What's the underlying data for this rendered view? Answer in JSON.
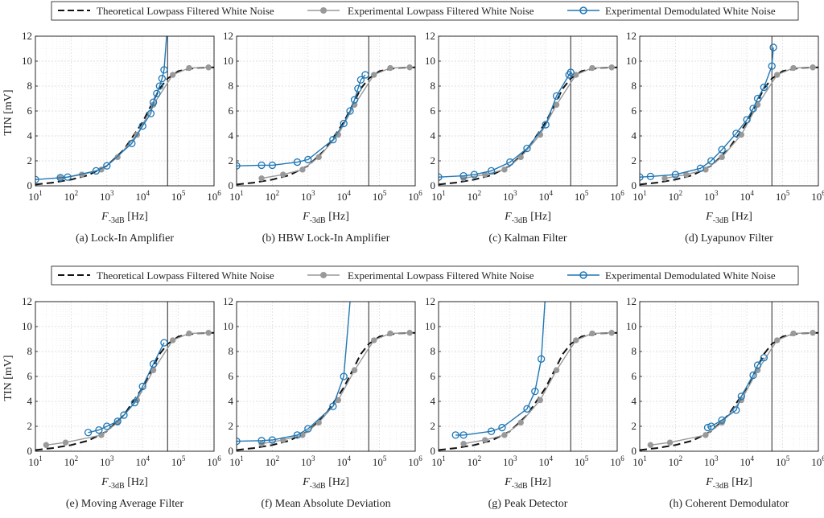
{
  "legend": {
    "theory": "Theoretical Lowpass Filtered White Noise",
    "lp": "Experimental Lowpass Filtered White Noise",
    "demod": "Experimental Demodulated White Noise"
  },
  "axes": {
    "ylabel": "TIN [mV]",
    "xlabel_main": "F",
    "xlabel_sub": "-3dB",
    "xlabel_unit": "[Hz]",
    "x_range_log10": [
      1,
      6
    ],
    "ylim": [
      0,
      12
    ],
    "y_ticks": [
      "0",
      "2",
      "4",
      "6",
      "8",
      "10",
      "12"
    ],
    "x_tick_base": "10",
    "x_tick_exps": [
      "1",
      "2",
      "3",
      "4",
      "5",
      "6"
    ],
    "cutoff_hz": 50000
  },
  "colors": {
    "theory": "#111111",
    "lp": "#999999",
    "demod": "#1f77b4",
    "grid": "#d9d9d9"
  },
  "chart_data": [
    {
      "type": "line",
      "title": "(a) Lock-In Amplifier",
      "series": [
        {
          "name": "Theoretical Lowpass Filtered White Noise",
          "x": [
            10,
            30,
            100,
            300,
            1000,
            3000,
            10000,
            30000,
            50000,
            100000,
            300000,
            1000000
          ],
          "y": [
            0.1,
            0.25,
            0.5,
            0.85,
            1.6,
            2.9,
            5.1,
            7.8,
            8.6,
            9.2,
            9.45,
            9.5
          ]
        },
        {
          "name": "Experimental Lowpass Filtered White Noise",
          "x": [
            50,
            200,
            700,
            2000,
            7000,
            20000,
            70000,
            200000,
            700000
          ],
          "y": [
            0.6,
            0.9,
            1.3,
            2.3,
            4.1,
            6.5,
            8.9,
            9.45,
            9.5
          ]
        },
        {
          "name": "Experimental Demodulated White Noise",
          "x": [
            10,
            50,
            80,
            500,
            1000,
            5000,
            10000,
            17000,
            20000,
            25000,
            30000,
            35000,
            40000,
            47000
          ],
          "y": [
            0.5,
            0.65,
            0.7,
            1.2,
            1.6,
            3.4,
            4.8,
            5.8,
            6.7,
            7.4,
            8.0,
            8.6,
            9.3,
            12.0
          ]
        }
      ]
    },
    {
      "type": "line",
      "title": "(b) HBW Lock-In Amplifier",
      "series": [
        {
          "name": "Theoretical Lowpass Filtered White Noise",
          "x": [
            10,
            30,
            100,
            300,
            1000,
            3000,
            10000,
            30000,
            50000,
            100000,
            300000,
            1000000
          ],
          "y": [
            0.1,
            0.25,
            0.5,
            0.85,
            1.6,
            2.9,
            5.1,
            7.8,
            8.6,
            9.2,
            9.45,
            9.5
          ]
        },
        {
          "name": "Experimental Lowpass Filtered White Noise",
          "x": [
            50,
            200,
            700,
            2000,
            7000,
            20000,
            70000,
            200000,
            700000
          ],
          "y": [
            0.6,
            0.9,
            1.3,
            2.3,
            4.1,
            6.5,
            8.9,
            9.45,
            9.5
          ]
        },
        {
          "name": "Experimental Demodulated White Noise",
          "x": [
            10,
            50,
            100,
            500,
            1000,
            5000,
            10000,
            15000,
            20000,
            25000,
            30000,
            40000
          ],
          "y": [
            1.6,
            1.65,
            1.65,
            1.9,
            2.1,
            3.7,
            5.0,
            6.0,
            6.9,
            7.8,
            8.5,
            8.9
          ]
        }
      ]
    },
    {
      "type": "line",
      "title": "(c) Kalman Filter",
      "series": [
        {
          "name": "Theoretical Lowpass Filtered White Noise",
          "x": [
            10,
            30,
            100,
            300,
            1000,
            3000,
            10000,
            30000,
            50000,
            100000,
            300000,
            1000000
          ],
          "y": [
            0.1,
            0.25,
            0.5,
            0.85,
            1.6,
            2.9,
            5.1,
            7.8,
            8.6,
            9.2,
            9.45,
            9.5
          ]
        },
        {
          "name": "Experimental Lowpass Filtered White Noise",
          "x": [
            50,
            200,
            700,
            2000,
            7000,
            20000,
            70000,
            200000,
            700000
          ],
          "y": [
            0.6,
            0.9,
            1.3,
            2.3,
            4.1,
            6.5,
            8.9,
            9.45,
            9.5
          ]
        },
        {
          "name": "Experimental Demodulated White Noise",
          "x": [
            10,
            50,
            100,
            300,
            1000,
            3000,
            10000,
            20000,
            45000,
            50000
          ],
          "y": [
            0.7,
            0.8,
            0.9,
            1.2,
            1.9,
            3.0,
            4.9,
            7.2,
            8.9,
            9.1
          ]
        }
      ]
    },
    {
      "type": "line",
      "title": "(d) Lyapunov Filter",
      "series": [
        {
          "name": "Theoretical Lowpass Filtered White Noise",
          "x": [
            10,
            30,
            100,
            300,
            1000,
            3000,
            10000,
            30000,
            50000,
            100000,
            300000,
            1000000
          ],
          "y": [
            0.1,
            0.25,
            0.5,
            0.85,
            1.6,
            2.9,
            5.1,
            7.8,
            8.6,
            9.2,
            9.45,
            9.5
          ]
        },
        {
          "name": "Experimental Lowpass Filtered White Noise",
          "x": [
            50,
            200,
            700,
            2000,
            7000,
            20000,
            70000,
            200000,
            700000
          ],
          "y": [
            0.6,
            0.9,
            1.3,
            2.3,
            4.1,
            6.5,
            8.9,
            9.45,
            9.5
          ]
        },
        {
          "name": "Experimental Demodulated White Noise",
          "x": [
            10,
            20,
            100,
            500,
            1000,
            2000,
            5000,
            10000,
            15000,
            20000,
            30000,
            50000,
            55000
          ],
          "y": [
            0.7,
            0.75,
            0.9,
            1.4,
            2.0,
            2.9,
            4.2,
            5.3,
            6.2,
            7.0,
            7.9,
            9.6,
            11.1
          ]
        }
      ]
    },
    {
      "type": "line",
      "title": "(e) Moving Average Filter",
      "series": [
        {
          "name": "Theoretical Lowpass Filtered White Noise",
          "x": [
            10,
            30,
            100,
            300,
            1000,
            3000,
            10000,
            30000,
            50000,
            100000,
            300000,
            1000000
          ],
          "y": [
            0.1,
            0.25,
            0.5,
            0.85,
            1.6,
            2.9,
            5.1,
            7.8,
            8.6,
            9.2,
            9.45,
            9.5
          ]
        },
        {
          "name": "Experimental Lowpass Filtered White Noise",
          "x": [
            20,
            70,
            700,
            2000,
            7000,
            20000,
            70000,
            200000,
            700000
          ],
          "y": [
            0.5,
            0.7,
            1.3,
            2.3,
            4.1,
            6.5,
            8.9,
            9.45,
            9.5
          ]
        },
        {
          "name": "Experimental Demodulated White Noise",
          "x": [
            300,
            600,
            1000,
            2000,
            3000,
            6000,
            10000,
            20000,
            40000
          ],
          "y": [
            1.5,
            1.7,
            2.0,
            2.4,
            2.9,
            3.9,
            5.2,
            7.0,
            8.7
          ]
        }
      ]
    },
    {
      "type": "line",
      "title": "(f) Mean Absolute Deviation",
      "series": [
        {
          "name": "Theoretical Lowpass Filtered White Noise",
          "x": [
            10,
            30,
            100,
            300,
            1000,
            3000,
            10000,
            30000,
            50000,
            100000,
            300000,
            1000000
          ],
          "y": [
            0.1,
            0.25,
            0.5,
            0.85,
            1.6,
            2.9,
            5.1,
            7.8,
            8.6,
            9.2,
            9.45,
            9.5
          ]
        },
        {
          "name": "Experimental Lowpass Filtered White Noise",
          "x": [
            50,
            200,
            700,
            2000,
            7000,
            20000,
            70000,
            200000,
            700000
          ],
          "y": [
            0.6,
            0.9,
            1.3,
            2.3,
            4.1,
            6.5,
            8.9,
            9.45,
            9.5
          ]
        },
        {
          "name": "Experimental Demodulated White Noise",
          "x": [
            10,
            50,
            100,
            500,
            1000,
            5000,
            10000,
            15000
          ],
          "y": [
            0.8,
            0.85,
            0.9,
            1.3,
            1.8,
            3.6,
            6.0,
            12.0
          ]
        }
      ]
    },
    {
      "type": "line",
      "title": "(g) Peak Detector",
      "series": [
        {
          "name": "Theoretical Lowpass Filtered White Noise",
          "x": [
            10,
            30,
            100,
            300,
            1000,
            3000,
            10000,
            30000,
            50000,
            100000,
            300000,
            1000000
          ],
          "y": [
            0.1,
            0.25,
            0.5,
            0.85,
            1.6,
            2.9,
            5.1,
            7.8,
            8.6,
            9.2,
            9.45,
            9.5
          ]
        },
        {
          "name": "Experimental Lowpass Filtered White Noise",
          "x": [
            50,
            200,
            700,
            2000,
            7000,
            20000,
            70000,
            200000,
            700000
          ],
          "y": [
            0.6,
            0.9,
            1.3,
            2.3,
            4.1,
            6.5,
            8.9,
            9.45,
            9.5
          ]
        },
        {
          "name": "Experimental Demodulated White Noise",
          "x": [
            30,
            50,
            300,
            600,
            3000,
            5000,
            7500,
            9500
          ],
          "y": [
            1.3,
            1.3,
            1.6,
            1.9,
            3.4,
            4.8,
            7.4,
            12.0
          ]
        }
      ]
    },
    {
      "type": "line",
      "title": "(h) Coherent Demodulator",
      "series": [
        {
          "name": "Theoretical Lowpass Filtered White Noise",
          "x": [
            10,
            30,
            100,
            300,
            1000,
            3000,
            10000,
            30000,
            50000,
            100000,
            300000,
            1000000
          ],
          "y": [
            0.1,
            0.25,
            0.5,
            0.85,
            1.6,
            2.9,
            5.1,
            7.8,
            8.6,
            9.2,
            9.45,
            9.5
          ]
        },
        {
          "name": "Experimental Lowpass Filtered White Noise",
          "x": [
            20,
            70,
            700,
            2000,
            7000,
            20000,
            70000,
            200000,
            700000
          ],
          "y": [
            0.5,
            0.7,
            1.3,
            2.3,
            4.1,
            6.5,
            8.9,
            9.45,
            9.5
          ]
        },
        {
          "name": "Experimental Demodulated White Noise",
          "x": [
            800,
            1000,
            2000,
            5000,
            7000,
            15000,
            20000,
            30000
          ],
          "y": [
            1.9,
            2.0,
            2.5,
            3.3,
            4.4,
            6.1,
            6.9,
            7.5
          ]
        }
      ]
    }
  ]
}
